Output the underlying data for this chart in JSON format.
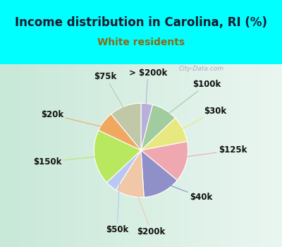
{
  "title": "Income distribution in Carolina, RI (%)",
  "subtitle": "White residents",
  "title_color": "#1a1a2e",
  "subtitle_color": "#8b6914",
  "background_color": "#00ffff",
  "chart_bg_left": "#d8ede0",
  "chart_bg_right": "#e8f5f0",
  "watermark": "City-Data.com",
  "slices": [
    {
      "label": "> $200k",
      "value": 4,
      "color": "#b8b0d8"
    },
    {
      "label": "$100k",
      "value": 9,
      "color": "#a0cca0"
    },
    {
      "label": "$30k",
      "value": 9,
      "color": "#e8e880"
    },
    {
      "label": "$125k",
      "value": 14,
      "color": "#f0a8b0"
    },
    {
      "label": "$40k",
      "value": 13,
      "color": "#9090c8"
    },
    {
      "label": "$200k",
      "value": 10,
      "color": "#f0c8a8"
    },
    {
      "label": "$50k",
      "value": 4,
      "color": "#b8c8f0"
    },
    {
      "label": "$150k",
      "value": 19,
      "color": "#b8e860"
    },
    {
      "label": "$20k",
      "value": 7,
      "color": "#f0a860"
    },
    {
      "label": "$75k",
      "value": 11,
      "color": "#c0c8a8"
    }
  ],
  "label_fontsize": 8.5,
  "title_fontsize": 12,
  "subtitle_fontsize": 10
}
